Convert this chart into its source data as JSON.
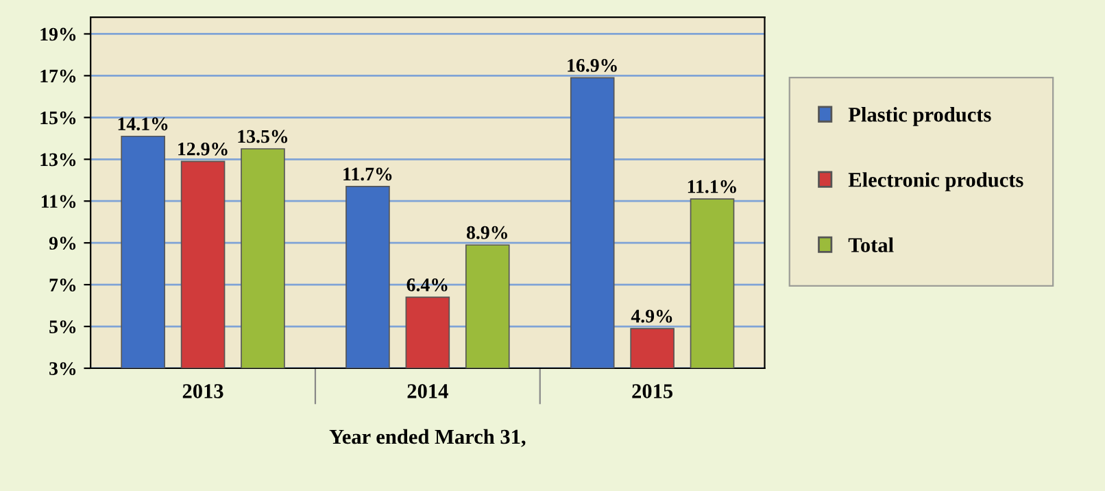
{
  "chart_data": {
    "type": "bar",
    "xlabel": "Year ended March 31,",
    "categories": [
      "2013",
      "2014",
      "2015"
    ],
    "series": [
      {
        "name": "Plastic products",
        "color": "#3f6fc4",
        "values": [
          14.1,
          11.7,
          16.9
        ],
        "value_labels": [
          "14.1%",
          "11.7%",
          "16.9%"
        ]
      },
      {
        "name": "Electronic products",
        "color": "#d03b3b",
        "values": [
          12.9,
          6.4,
          4.9
        ],
        "value_labels": [
          "12.9%",
          "6.4%",
          "4.9%"
        ]
      },
      {
        "name": "Total",
        "color": "#9bbb3b",
        "values": [
          13.5,
          8.9,
          11.1
        ],
        "value_labels": [
          "13.5%",
          "8.9%",
          "11.1%"
        ]
      }
    ],
    "ylim": [
      3,
      19.8
    ],
    "yticks": [
      {
        "value": 3,
        "label": "3%"
      },
      {
        "value": 5,
        "label": "5%"
      },
      {
        "value": 7,
        "label": "7%"
      },
      {
        "value": 9,
        "label": "9%"
      },
      {
        "value": 11,
        "label": "11%"
      },
      {
        "value": 13,
        "label": "13%"
      },
      {
        "value": 15,
        "label": "15%"
      },
      {
        "value": 17,
        "label": "17%"
      },
      {
        "value": 19,
        "label": "19%"
      }
    ],
    "grid": "y",
    "legend": "right"
  }
}
